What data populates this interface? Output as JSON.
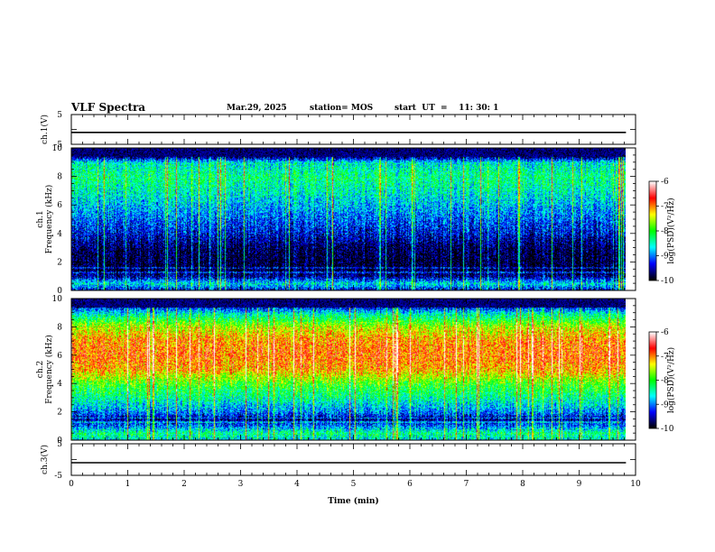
{
  "header": {
    "title": "VLF Spectra",
    "date": "Mar.29, 2025",
    "station": "station= MOS",
    "start": "start  UT  =    11: 30: 1"
  },
  "colormap": [
    "#000000",
    "#000080",
    "#0000ff",
    "#0080ff",
    "#00ffff",
    "#00ff80",
    "#00ff00",
    "#80ff00",
    "#ffff00",
    "#ff8000",
    "#ff0000",
    "#ff8080",
    "#ffffff"
  ],
  "chart_data": [
    {
      "type": "line",
      "panel": "ch1-waveform",
      "ylabel": "ch.1(V)",
      "ylim": [
        -5,
        5
      ],
      "yticks": [
        "5",
        "-5"
      ],
      "x": [
        0,
        9.83
      ],
      "values": [
        -1,
        -1
      ]
    },
    {
      "type": "heatmap",
      "panel": "ch1-spectrogram",
      "ylabel": "ch.1\nFrequency (kHz)",
      "ylim": [
        0,
        10
      ],
      "yticks": [
        "0",
        "2",
        "4",
        "6",
        "8",
        "10"
      ],
      "xlim": [
        0,
        9.83
      ],
      "z_range": [
        -10,
        -6
      ],
      "colorbar": {
        "ticks": [
          "-6",
          "-7",
          "-8",
          "-9",
          "-10"
        ],
        "label": "log(PSD)(V²/Hz)"
      },
      "profile": {
        "freq_khz": [
          0,
          0.5,
          1,
          1.5,
          2,
          3,
          4,
          5,
          6,
          7,
          8,
          9,
          9.5,
          10
        ],
        "log_psd": [
          -9.5,
          -8.6,
          -9.6,
          -9.9,
          -9.9,
          -9.8,
          -9.4,
          -9.1,
          -8.8,
          -8.5,
          -8.3,
          -8.6,
          -10,
          -10
        ]
      }
    },
    {
      "type": "heatmap",
      "panel": "ch2-spectrogram",
      "ylabel": "ch.2\nFrequency (kHz)",
      "ylim": [
        0,
        10
      ],
      "yticks": [
        "0",
        "2",
        "4",
        "6",
        "8",
        "10"
      ],
      "xlim": [
        0,
        9.83
      ],
      "z_range": [
        -10,
        -6
      ],
      "colorbar": {
        "ticks": [
          "-6",
          "-7",
          "-8",
          "-9",
          "-10"
        ],
        "label": "log(PSD)(V²/Hz)"
      },
      "profile": {
        "freq_khz": [
          0,
          0.5,
          1,
          1.5,
          2,
          3,
          4,
          5,
          6,
          7,
          8,
          9,
          9.5,
          10
        ],
        "log_psd": [
          -8.7,
          -8.3,
          -9.0,
          -9.6,
          -9.0,
          -8.4,
          -7.9,
          -7.1,
          -6.9,
          -7.0,
          -7.5,
          -8.6,
          -9.5,
          -9.8
        ]
      }
    },
    {
      "type": "line",
      "panel": "ch3-waveform",
      "ylabel": "ch.3(V)",
      "ylim": [
        -5,
        5
      ],
      "yticks": [
        "5",
        "-5"
      ],
      "x": [
        0,
        9.83
      ],
      "values": [
        -1,
        -1
      ],
      "xlabel": "Time  (min)",
      "xlim": [
        0,
        10
      ],
      "xticks": [
        "0",
        "1",
        "2",
        "3",
        "4",
        "5",
        "6",
        "7",
        "8",
        "9",
        "10"
      ]
    }
  ]
}
